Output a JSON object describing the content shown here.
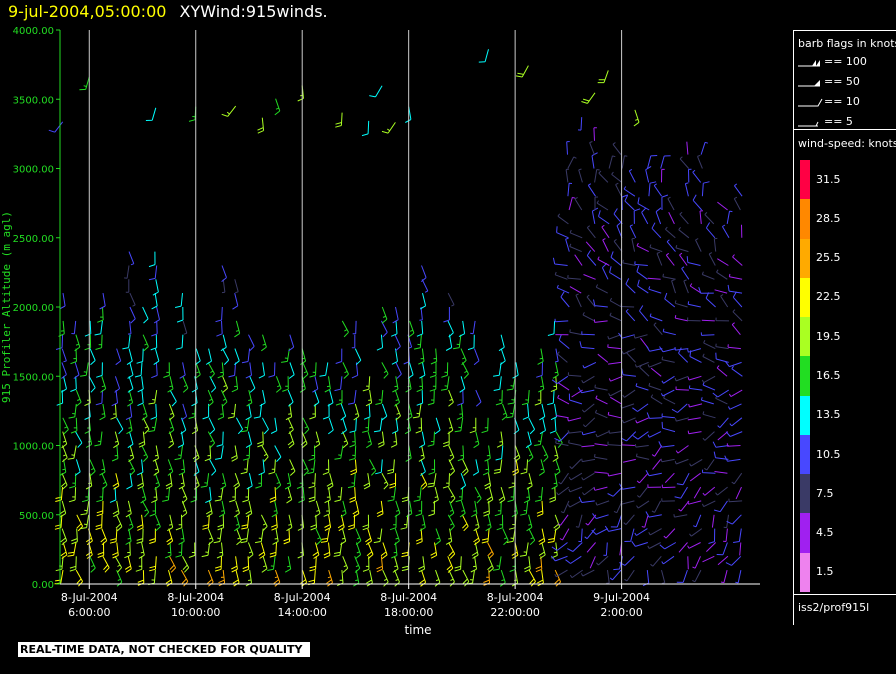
{
  "header": {
    "datetime": "9-jul-2004,05:00:00",
    "title": "XYWind:915winds."
  },
  "chart_data": {
    "type": "barbs",
    "ylabel": "915 Profiler Altitude (m agl)",
    "xlabel": "time",
    "ylim": [
      0,
      4000
    ],
    "y_ticks": [
      "0.00",
      "500.00",
      "1000.00",
      "1500.00",
      "2000.00",
      "2500.00",
      "3000.00",
      "3500.00",
      "4000.00"
    ],
    "x_ticks": [
      {
        "date": "8-Jul-2004",
        "time": "6:00:00",
        "hour": 6
      },
      {
        "date": "8-Jul-2004",
        "time": "10:00:00",
        "hour": 10
      },
      {
        "date": "8-Jul-2004",
        "time": "14:00:00",
        "hour": 14
      },
      {
        "date": "8-Jul-2004",
        "time": "18:00:00",
        "hour": 18
      },
      {
        "date": "8-Jul-2004",
        "time": "22:00:00",
        "hour": 22
      },
      {
        "date": "9-Jul-2004",
        "time": "2:00:00",
        "hour": 26
      }
    ],
    "xlim_hours": [
      4.9,
      31.2
    ],
    "gridlines": "vertical",
    "speed_colors": [
      "#ee82ee",
      "#a020f0",
      "#3a3a66",
      "#4848ff",
      "#00ffff",
      "#22dd22",
      "#aaff22",
      "#ffff00",
      "#ffaa00",
      "#ff8800",
      "#ff0044"
    ],
    "speed_labels": [
      "1.5",
      "4.5",
      "7.5",
      "10.5",
      "13.5",
      "16.5",
      "19.5",
      "22.5",
      "25.5",
      "28.5",
      "31.5"
    ]
  },
  "legend": {
    "barb_title": "barb flags in knots",
    "barb_items": [
      "== 100",
      "== 50",
      "== 10",
      "== 5"
    ],
    "speed_title": "wind-speed: knots",
    "source": "iss2/prof915l"
  },
  "footer": {
    "qc_note": "REAL-TIME DATA, NOT CHECKED FOR QUALITY"
  }
}
